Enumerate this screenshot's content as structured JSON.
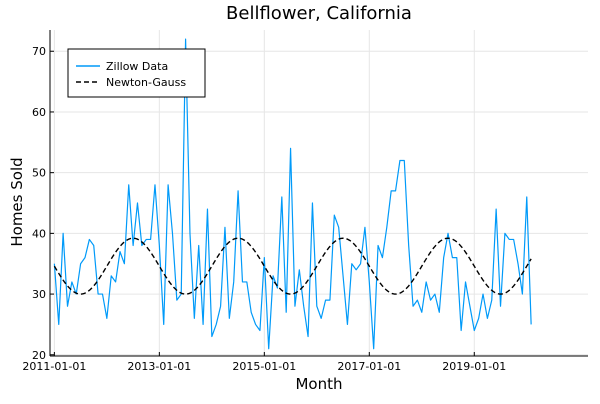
{
  "chart_data": {
    "type": "line",
    "title": "Bellflower, California",
    "xlabel": "Month",
    "ylabel": "Homes Sold",
    "x_start": "2011-01-01",
    "x_end": "2020-12-01",
    "xlim": [
      "2010-12-01",
      "2021-03-01"
    ],
    "ylim": [
      19.8,
      73.5
    ],
    "x_ticks": [
      "2011-01-01",
      "2013-01-01",
      "2015-01-01",
      "2017-01-01",
      "2019-01-01"
    ],
    "y_ticks": [
      20,
      30,
      40,
      50,
      60,
      70
    ],
    "grid": true,
    "legend": {
      "placement": "top-left"
    },
    "series": [
      {
        "name": "Zillow Data",
        "style": "solid",
        "color": "#009af9",
        "values": [
          35,
          25,
          40,
          28,
          32,
          30,
          35,
          36,
          39,
          38,
          30,
          30,
          26,
          33,
          32,
          37,
          35,
          48,
          38,
          45,
          38,
          39,
          39,
          48,
          38,
          25,
          48,
          40,
          29,
          30,
          72,
          40,
          26,
          38,
          25,
          44,
          23,
          25,
          28,
          41,
          26,
          32,
          47,
          32,
          32,
          27,
          25,
          24,
          36,
          21,
          33,
          31,
          46,
          27,
          54,
          28,
          34,
          28,
          23,
          45,
          28,
          26,
          29,
          29,
          43,
          41,
          33,
          25,
          35,
          34,
          35,
          41,
          32,
          21,
          38,
          36,
          41,
          47,
          47,
          52,
          52,
          38,
          28,
          29,
          27,
          32,
          29,
          30,
          27,
          36,
          40,
          36,
          36,
          24,
          32,
          28,
          24,
          26,
          30,
          26,
          29,
          44,
          28,
          40,
          39,
          39,
          35,
          30,
          46,
          25
        ]
      },
      {
        "name": "Newton-Gauss",
        "style": "dashed",
        "color": "#000000",
        "model": {
          "mean": 34.6,
          "amplitude": 4.6,
          "period_months": 24,
          "phase_months": 6
        }
      }
    ]
  }
}
